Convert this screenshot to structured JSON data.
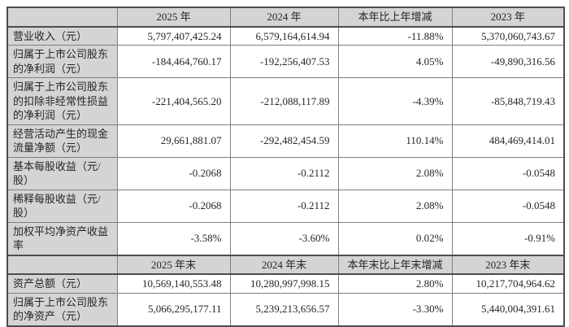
{
  "colors": {
    "header_bg": "#d4d4d4",
    "cell_bg": "#ffffff",
    "grid_line": "#7f7f7f",
    "outer_border": "#4d4d4d",
    "text": "#262626"
  },
  "table": {
    "sections": [
      {
        "columns": [
          "",
          "2025 年",
          "2024 年",
          "本年比上年增减",
          "2023 年"
        ],
        "rows": [
          {
            "label": "营业收入（元）",
            "values": [
              "5,797,407,425.24",
              "6,579,164,614.94",
              "-11.88%",
              "5,370,060,743.67"
            ]
          },
          {
            "label": "归属于上市公司股东的净利润（元）",
            "values": [
              "-184,464,760.17",
              "-192,256,407.53",
              "4.05%",
              "-49,890,316.56"
            ]
          },
          {
            "label": "归属于上市公司股东的扣除非经常性损益的净利润（元）",
            "values": [
              "-221,404,565.20",
              "-212,088,117.89",
              "-4.39%",
              "-85,848,719.43"
            ]
          },
          {
            "label": "经营活动产生的现金流量净额（元）",
            "values": [
              "29,661,881.07",
              "-292,482,454.59",
              "110.14%",
              "484,469,414.01"
            ]
          },
          {
            "label": "基本每股收益（元/股）",
            "values": [
              "-0.2068",
              "-0.2112",
              "2.08%",
              "-0.0548"
            ]
          },
          {
            "label": "稀释每股收益（元/股）",
            "values": [
              "-0.2068",
              "-0.2112",
              "2.08%",
              "-0.0548"
            ]
          },
          {
            "label": "加权平均净资产收益率",
            "values": [
              "-3.58%",
              "-3.60%",
              "0.02%",
              "-0.91%"
            ]
          }
        ]
      },
      {
        "columns": [
          "",
          "2025 年末",
          "2024 年末",
          "本年末比上年末增减",
          "2023 年末"
        ],
        "rows": [
          {
            "label": "资产总额（元）",
            "values": [
              "10,569,140,553.48",
              "10,280,997,998.15",
              "2.80%",
              "10,217,704,964.62"
            ]
          },
          {
            "label": "归属于上市公司股东的净资产（元）",
            "values": [
              "5,066,295,177.11",
              "5,239,213,656.57",
              "-3.30%",
              "5,440,004,391.61"
            ]
          }
        ]
      }
    ]
  }
}
